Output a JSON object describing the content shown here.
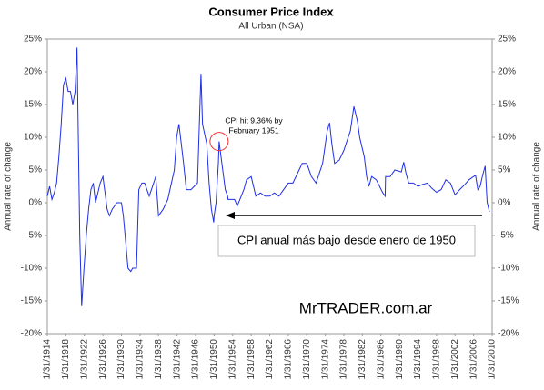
{
  "chart_data": {
    "type": "line",
    "title": "Consumer Price Index",
    "subtitle": "All Urban (NSA)",
    "y_label": "Annual rate of change",
    "y2_label": "Annual rate of change",
    "color": "#1f2fe6",
    "x": [
      "1/31/1914",
      "7/31/1914",
      "1/31/1915",
      "7/31/1915",
      "1/31/1916",
      "7/31/1916",
      "1/31/1917",
      "7/31/1917",
      "1/31/1918",
      "7/31/1918",
      "1/31/1919",
      "7/31/1919",
      "1/31/1920",
      "6/30/1920",
      "1/31/1921",
      "6/30/1921",
      "12/31/1921",
      "6/30/1922",
      "12/31/1922",
      "6/30/1923",
      "12/31/1923",
      "6/30/1924",
      "6/30/1925",
      "1/31/1926",
      "12/31/1926",
      "6/30/1927",
      "1/31/1928",
      "1/31/1929",
      "1/31/1930",
      "6/30/1930",
      "12/31/1930",
      "6/30/1931",
      "1/31/1932",
      "6/30/1932",
      "12/31/1932",
      "4/30/1933",
      "10/31/1933",
      "6/30/1934",
      "1/31/1935",
      "1/31/1936",
      "6/30/1937",
      "1/31/1938",
      "1/31/1939",
      "1/31/1940",
      "6/30/1941",
      "12/31/1941",
      "6/30/1942",
      "12/31/1942",
      "6/30/1943",
      "1/31/1944",
      "1/31/1945",
      "6/30/1946",
      "3/31/1947",
      "7/31/1947",
      "6/30/1948",
      "12/31/1948",
      "6/30/1949",
      "12/31/1949",
      "1/31/1950",
      "6/30/1950",
      "12/31/1950",
      "2/28/1951",
      "7/31/1951",
      "6/30/1952",
      "12/31/1952",
      "1/31/1953",
      "6/30/1954",
      "1/31/1955",
      "6/30/1956",
      "1/31/1957",
      "1/31/1958",
      "1/31/1959",
      "1/31/1960",
      "1/31/1961",
      "1/31/1962",
      "1/31/1963",
      "1/31/1964",
      "1/31/1965",
      "1/31/1966",
      "1/31/1967",
      "1/31/1968",
      "1/31/1969",
      "1/31/1970",
      "1/31/1971",
      "1/31/1972",
      "6/30/1973",
      "12/31/1973",
      "6/30/1974",
      "12/31/1974",
      "6/30/1975",
      "1/31/1976",
      "1/31/1977",
      "1/31/1978",
      "6/30/1979",
      "3/31/1980",
      "12/31/1980",
      "6/30/1981",
      "6/30/1982",
      "12/31/1982",
      "6/30/1983",
      "1/31/1984",
      "1/31/1985",
      "6/30/1986",
      "12/31/1986",
      "1/31/1987",
      "1/31/1988",
      "1/31/1989",
      "6/30/1990",
      "12/31/1990",
      "6/30/1991",
      "1/31/1992",
      "1/31/1993",
      "1/31/1994",
      "1/31/1995",
      "1/31/1996",
      "1/31/1997",
      "1/31/1998",
      "1/31/1999",
      "1/31/2000",
      "1/31/2001",
      "1/31/2002",
      "1/31/2003",
      "1/31/2004",
      "1/31/2005",
      "6/30/2006",
      "12/31/2006",
      "6/30/2007",
      "12/31/2007",
      "7/31/2008",
      "12/31/2008",
      "6/30/2009"
    ],
    "values": [
      1,
      2.5,
      0.5,
      1.5,
      3,
      7,
      12,
      18,
      19,
      17,
      17,
      15,
      17,
      23.7,
      -5,
      -15.8,
      -10,
      -5,
      -1,
      2,
      3,
      0,
      3,
      4,
      -1,
      -2,
      -1,
      0,
      0,
      -2,
      -6,
      -10,
      -10.5,
      -10,
      -10,
      -10,
      2,
      3,
      3,
      1,
      4,
      -2,
      -1,
      0.5,
      5,
      10,
      12,
      9,
      6,
      2,
      2,
      3,
      19.7,
      12,
      9,
      3,
      -1,
      -3,
      -2,
      0,
      6,
      9.36,
      7,
      2,
      1,
      0.5,
      0.5,
      -0.5,
      2,
      3.5,
      4,
      1,
      1.5,
      1,
      1,
      1.5,
      1,
      2,
      3,
      3,
      4.5,
      6,
      6,
      4,
      3,
      6,
      8.5,
      11,
      12.2,
      9,
      6,
      6.5,
      8,
      11,
      14.7,
      12.5,
      10,
      7,
      4,
      2.5,
      4,
      3.5,
      1.5,
      1,
      4,
      4,
      5,
      4.7,
      6.2,
      4.5,
      3,
      3,
      2.5,
      2.8,
      3,
      2.2,
      1.6,
      2,
      3.5,
      3,
      1.2,
      2,
      2.7,
      3.5,
      4.2,
      2,
      2.5,
      4.1,
      5.6,
      0.1,
      -1.4
    ],
    "xlim": [
      "1/31/1914",
      "1/31/2010"
    ],
    "xticks": [
      "1/31/1914",
      "1/31/1918",
      "1/31/1922",
      "1/31/1926",
      "1/31/1930",
      "1/31/1934",
      "1/31/1938",
      "1/31/1942",
      "1/31/1946",
      "1/31/1950",
      "1/31/1954",
      "1/31/1958",
      "1/31/1962",
      "1/31/1966",
      "1/31/1970",
      "1/31/1974",
      "1/31/1978",
      "1/31/1982",
      "1/31/1986",
      "1/31/1990",
      "1/31/1994",
      "1/31/1998",
      "1/31/2002",
      "1/31/2006",
      "1/31/2010"
    ],
    "ylim": [
      -20,
      25
    ],
    "yticks": [
      {
        "value": -20,
        "label": "-20%"
      },
      {
        "value": -15,
        "label": "-15%"
      },
      {
        "value": -10,
        "label": "-10%"
      },
      {
        "value": -5,
        "label": "-5%"
      },
      {
        "value": 0,
        "label": "0%"
      },
      {
        "value": 5,
        "label": "5%"
      },
      {
        "value": 10,
        "label": "10%"
      },
      {
        "value": 15,
        "label": "15%"
      },
      {
        "value": 20,
        "label": "20%"
      },
      {
        "value": 25,
        "label": "25%"
      }
    ],
    "y2lim": [
      -20,
      25
    ],
    "y2ticks": [
      {
        "value": -20,
        "label": "-20%"
      },
      {
        "value": -15,
        "label": "-15%"
      },
      {
        "value": -10,
        "label": "-10%"
      },
      {
        "value": -5,
        "label": "-5%"
      },
      {
        "value": 0,
        "label": "0%"
      },
      {
        "value": 5,
        "label": "5%"
      },
      {
        "value": 10,
        "label": "10%"
      },
      {
        "value": 15,
        "label": "15%"
      },
      {
        "value": 20,
        "label": "20%"
      },
      {
        "value": 25,
        "label": "25%"
      }
    ],
    "annotations": [
      "CPI hit 9.36% by",
      "February 1951",
      "CPI anual más bajo desde enero de 1950",
      "MrTRADER.com.ar"
    ]
  }
}
